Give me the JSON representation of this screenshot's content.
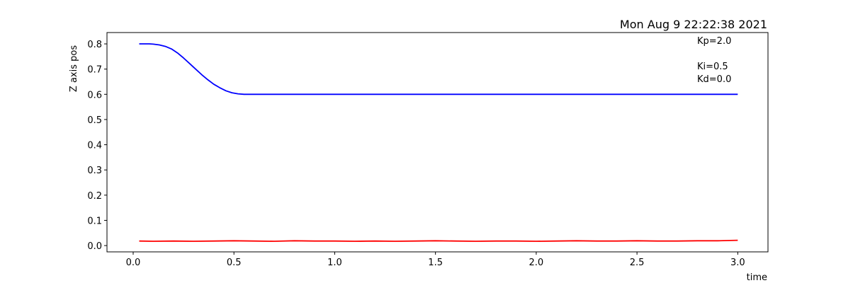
{
  "chart_data": {
    "type": "line",
    "title": "Mon Aug  9 22:22:38 2021",
    "xlabel": "time",
    "ylabel": "Z axis pos",
    "xlim": [
      -0.13,
      3.15
    ],
    "ylim": [
      -0.025,
      0.845
    ],
    "xticks": [
      0.0,
      0.5,
      1.0,
      1.5,
      2.0,
      2.5,
      3.0
    ],
    "xtick_labels": [
      "0.0",
      "0.5",
      "1.0",
      "1.5",
      "2.0",
      "2.5",
      "3.0"
    ],
    "yticks": [
      0.0,
      0.1,
      0.2,
      0.3,
      0.4,
      0.5,
      0.6,
      0.7,
      0.8
    ],
    "ytick_labels": [
      "0.0",
      "0.1",
      "0.2",
      "0.3",
      "0.4",
      "0.5",
      "0.6",
      "0.7",
      "0.8"
    ],
    "grid": false,
    "annotations": [
      "Kp=2.0",
      "Ki=0.5",
      "Kd=0.0"
    ],
    "series": [
      {
        "color": "#0000ff",
        "x": [
          0.03,
          0.08,
          0.1,
          0.13,
          0.16,
          0.19,
          0.22,
          0.25,
          0.28,
          0.31,
          0.34,
          0.37,
          0.4,
          0.43,
          0.46,
          0.49,
          0.52,
          0.55,
          0.6,
          0.7,
          1.0,
          1.5,
          2.0,
          2.5,
          3.0
        ],
        "y": [
          0.8,
          0.8,
          0.799,
          0.796,
          0.79,
          0.78,
          0.764,
          0.744,
          0.722,
          0.7,
          0.678,
          0.658,
          0.64,
          0.626,
          0.614,
          0.606,
          0.602,
          0.6,
          0.6,
          0.6,
          0.6,
          0.6,
          0.6,
          0.6,
          0.6
        ]
      },
      {
        "color": "#ff0000",
        "x": [
          0.03,
          0.1,
          0.2,
          0.3,
          0.4,
          0.5,
          0.6,
          0.7,
          0.8,
          0.9,
          1.0,
          1.1,
          1.2,
          1.3,
          1.4,
          1.5,
          1.6,
          1.7,
          1.8,
          1.9,
          2.0,
          2.1,
          2.2,
          2.3,
          2.4,
          2.5,
          2.6,
          2.7,
          2.8,
          2.9,
          3.0
        ],
        "y": [
          0.018,
          0.017,
          0.018,
          0.017,
          0.018,
          0.019,
          0.018,
          0.017,
          0.019,
          0.018,
          0.018,
          0.017,
          0.018,
          0.017,
          0.018,
          0.019,
          0.018,
          0.017,
          0.018,
          0.018,
          0.017,
          0.018,
          0.019,
          0.018,
          0.018,
          0.019,
          0.018,
          0.018,
          0.019,
          0.019,
          0.021
        ]
      }
    ]
  }
}
